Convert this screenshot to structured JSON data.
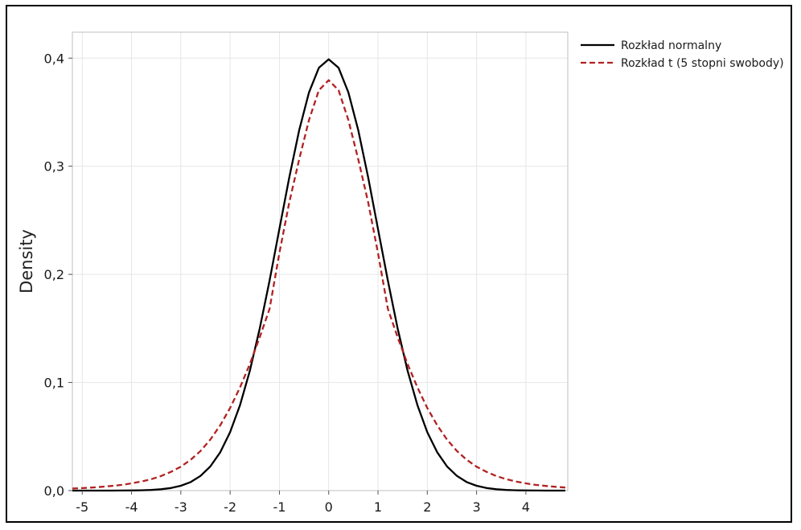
{
  "chart_data": {
    "type": "line",
    "title": "",
    "xlabel": "",
    "ylabel": "Density",
    "xlim": [
      -5.2,
      4.85
    ],
    "ylim": [
      0.0,
      0.424
    ],
    "grid": true,
    "legend_position": "top-right-outside",
    "xticks": [
      "-5",
      "-4",
      "-3",
      "-2",
      "-1",
      "0",
      "1",
      "2",
      "3",
      "4"
    ],
    "yticks": [
      "0,0",
      "0,1",
      "0,2",
      "0,3",
      "0,4"
    ],
    "series": [
      {
        "name": "Rozkład normalny",
        "color": "#000000",
        "dash": "solid",
        "x": [
          -5.2,
          -5.0,
          -4.8,
          -4.6,
          -4.4,
          -4.2,
          -4.0,
          -3.8,
          -3.6,
          -3.4,
          -3.2,
          -3.0,
          -2.8,
          -2.6,
          -2.4,
          -2.2,
          -2.0,
          -1.8,
          -1.6,
          -1.4,
          -1.2,
          -1.0,
          -0.8,
          -0.6,
          -0.4,
          -0.2,
          0.0,
          0.2,
          0.4,
          0.6,
          0.8,
          1.0,
          1.2,
          1.4,
          1.6,
          1.8,
          2.0,
          2.2,
          2.4,
          2.6,
          2.8,
          3.0,
          3.2,
          3.4,
          3.6,
          3.8,
          4.0,
          4.2,
          4.4,
          4.6,
          4.8
        ],
        "y": [
          1e-06,
          1e-06,
          4e-06,
          1e-05,
          2.5e-05,
          5.9e-05,
          0.000134,
          0.000292,
          0.000612,
          0.001232,
          0.002384,
          0.004432,
          0.007915,
          0.013583,
          0.022395,
          0.035475,
          0.053991,
          0.07895,
          0.110921,
          0.149727,
          0.194186,
          0.241971,
          0.289692,
          0.333225,
          0.36827,
          0.391043,
          0.398942,
          0.391043,
          0.36827,
          0.333225,
          0.289692,
          0.241971,
          0.194186,
          0.149727,
          0.110921,
          0.07895,
          0.053991,
          0.035475,
          0.022395,
          0.013583,
          0.007915,
          0.004432,
          0.002384,
          0.001232,
          0.000612,
          0.000292,
          0.000134,
          5.9e-05,
          2.5e-05,
          1e-05,
          4e-06
        ]
      },
      {
        "name": "Rozkład t (5 stopni swobody)",
        "color": "#b22222",
        "dash": "dashed",
        "x": [
          -5.2,
          -5.0,
          -4.8,
          -4.6,
          -4.4,
          -4.2,
          -4.0,
          -3.8,
          -3.6,
          -3.4,
          -3.2,
          -3.0,
          -2.8,
          -2.6,
          -2.4,
          -2.2,
          -2.0,
          -1.8,
          -1.6,
          -1.4,
          -1.2,
          -1.0,
          -0.8,
          -0.6,
          -0.4,
          -0.2,
          0.0,
          0.2,
          0.4,
          0.6,
          0.8,
          1.0,
          1.2,
          1.4,
          1.6,
          1.8,
          2.0,
          2.2,
          2.4,
          2.6,
          2.8,
          3.0,
          3.2,
          3.4,
          3.6,
          3.8,
          4.0,
          4.2,
          4.4,
          4.6,
          4.8
        ],
        "y": [
          0.0019,
          0.0023,
          0.0028,
          0.0035,
          0.0043,
          0.0053,
          0.0067,
          0.0084,
          0.0106,
          0.0135,
          0.0173,
          0.0221,
          0.0285,
          0.0367,
          0.0472,
          0.0605,
          0.0764,
          0.0954,
          0.1171,
          0.1417,
          0.1681,
          0.2197,
          0.2666,
          0.3063,
          0.3427,
          0.3703,
          0.3796,
          0.3703,
          0.3427,
          0.3063,
          0.2666,
          0.2197,
          0.1681,
          0.1417,
          0.1171,
          0.0954,
          0.0764,
          0.0605,
          0.0472,
          0.0367,
          0.0285,
          0.0221,
          0.0173,
          0.0135,
          0.0106,
          0.0084,
          0.0067,
          0.0053,
          0.0043,
          0.0035,
          0.0028
        ]
      }
    ]
  }
}
